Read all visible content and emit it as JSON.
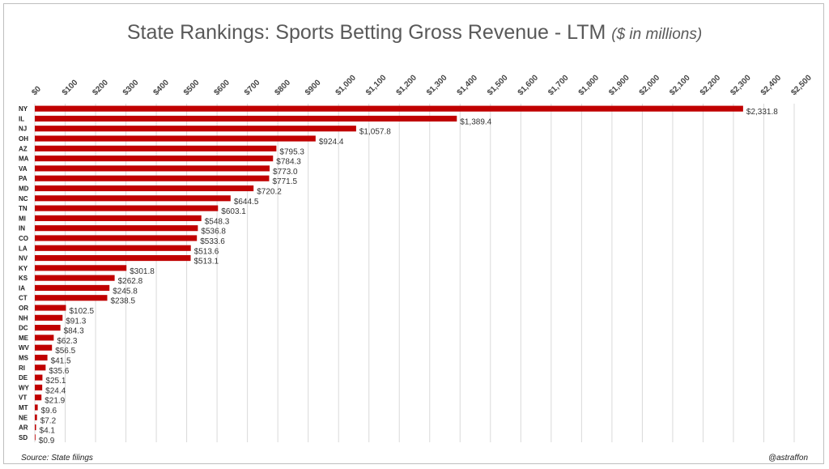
{
  "header": {
    "title": "State Rankings: Sports Betting Gross Revenue - LTM",
    "subtitle": "($ in millions)"
  },
  "footer": {
    "source": "Source: State filings",
    "handle": "@astraffon"
  },
  "chart_data": {
    "type": "bar",
    "orientation": "horizontal",
    "title": "State Rankings: Sports Betting Gross Revenue - LTM",
    "subtitle": "($ in millions)",
    "xlim": [
      0,
      2500
    ],
    "grid": true,
    "bar_color": "#c00000",
    "x_ticks": [
      {
        "value": 0,
        "label": "$0"
      },
      {
        "value": 100,
        "label": "$100"
      },
      {
        "value": 200,
        "label": "$200"
      },
      {
        "value": 300,
        "label": "$300"
      },
      {
        "value": 400,
        "label": "$400"
      },
      {
        "value": 500,
        "label": "$500"
      },
      {
        "value": 600,
        "label": "$600"
      },
      {
        "value": 700,
        "label": "$700"
      },
      {
        "value": 800,
        "label": "$800"
      },
      {
        "value": 900,
        "label": "$900"
      },
      {
        "value": 1000,
        "label": "$1,000"
      },
      {
        "value": 1100,
        "label": "$1,100"
      },
      {
        "value": 1200,
        "label": "$1,200"
      },
      {
        "value": 1300,
        "label": "$1,300"
      },
      {
        "value": 1400,
        "label": "$1,400"
      },
      {
        "value": 1500,
        "label": "$1,500"
      },
      {
        "value": 1600,
        "label": "$1,600"
      },
      {
        "value": 1700,
        "label": "$1,700"
      },
      {
        "value": 1800,
        "label": "$1,800"
      },
      {
        "value": 1900,
        "label": "$1,900"
      },
      {
        "value": 2000,
        "label": "$2,000"
      },
      {
        "value": 2100,
        "label": "$2,100"
      },
      {
        "value": 2200,
        "label": "$2,200"
      },
      {
        "value": 2300,
        "label": "$2,300"
      },
      {
        "value": 2400,
        "label": "$2,400"
      },
      {
        "value": 2500,
        "label": "$2,500"
      }
    ],
    "categories": [
      "NY",
      "IL",
      "NJ",
      "OH",
      "AZ",
      "MA",
      "VA",
      "PA",
      "MD",
      "NC",
      "TN",
      "MI",
      "IN",
      "CO",
      "LA",
      "NV",
      "KY",
      "KS",
      "IA",
      "CT",
      "OR",
      "NH",
      "DC",
      "ME",
      "WV",
      "MS",
      "RI",
      "DE",
      "WY",
      "VT",
      "MT",
      "NE",
      "AR",
      "SD"
    ],
    "values": [
      2331.8,
      1389.4,
      1057.8,
      924.4,
      795.3,
      784.3,
      773.0,
      771.5,
      720.2,
      644.5,
      603.1,
      548.3,
      536.8,
      533.6,
      513.6,
      513.1,
      301.8,
      262.8,
      245.8,
      238.5,
      102.5,
      91.3,
      84.3,
      62.3,
      56.5,
      41.5,
      35.6,
      25.1,
      24.4,
      21.9,
      9.6,
      7.2,
      4.1,
      0.9
    ],
    "data_labels": [
      "$2,331.8",
      "$1,389.4",
      "$1,057.8",
      "$924.4",
      "$795.3",
      "$784.3",
      "$773.0",
      "$771.5",
      "$720.2",
      "$644.5",
      "$603.1",
      "$548.3",
      "$536.8",
      "$533.6",
      "$513.6",
      "$513.1",
      "$301.8",
      "$262.8",
      "$245.8",
      "$238.5",
      "$102.5",
      "$91.3",
      "$84.3",
      "$62.3",
      "$56.5",
      "$41.5",
      "$35.6",
      "$25.1",
      "$24.4",
      "$21.9",
      "$9.6",
      "$7.2",
      "$4.1",
      "$0.9"
    ]
  }
}
